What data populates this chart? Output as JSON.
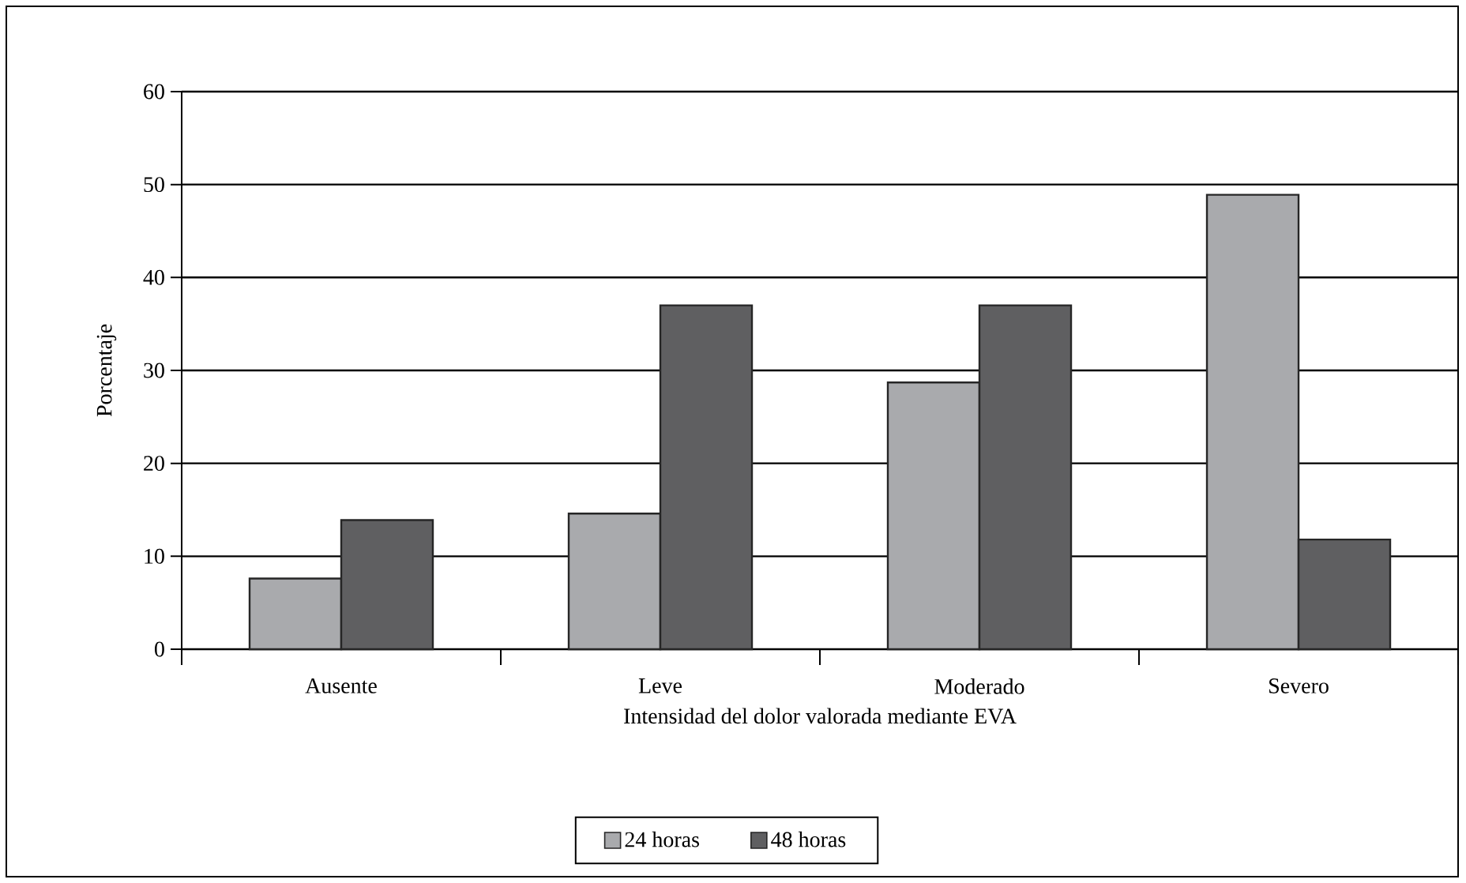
{
  "chart_data": {
    "type": "bar",
    "xlabel": "Intensidad del dolor valorada mediante EVA",
    "ylabel": "Porcentaje",
    "categories": [
      "Ausente",
      "Leve",
      "Moderado",
      "Severo"
    ],
    "series": [
      {
        "name": "24 horas",
        "color": "#a9aaad",
        "values": [
          7.6,
          14.6,
          28.7,
          48.9
        ]
      },
      {
        "name": "48 horas",
        "color": "#5f5f61",
        "values": [
          13.9,
          37.0,
          37.0,
          11.8
        ]
      }
    ],
    "ylim": [
      0,
      60
    ],
    "yticks": [
      0,
      10,
      20,
      30,
      40,
      50,
      60
    ],
    "grid": "y",
    "legend": "bottom"
  }
}
